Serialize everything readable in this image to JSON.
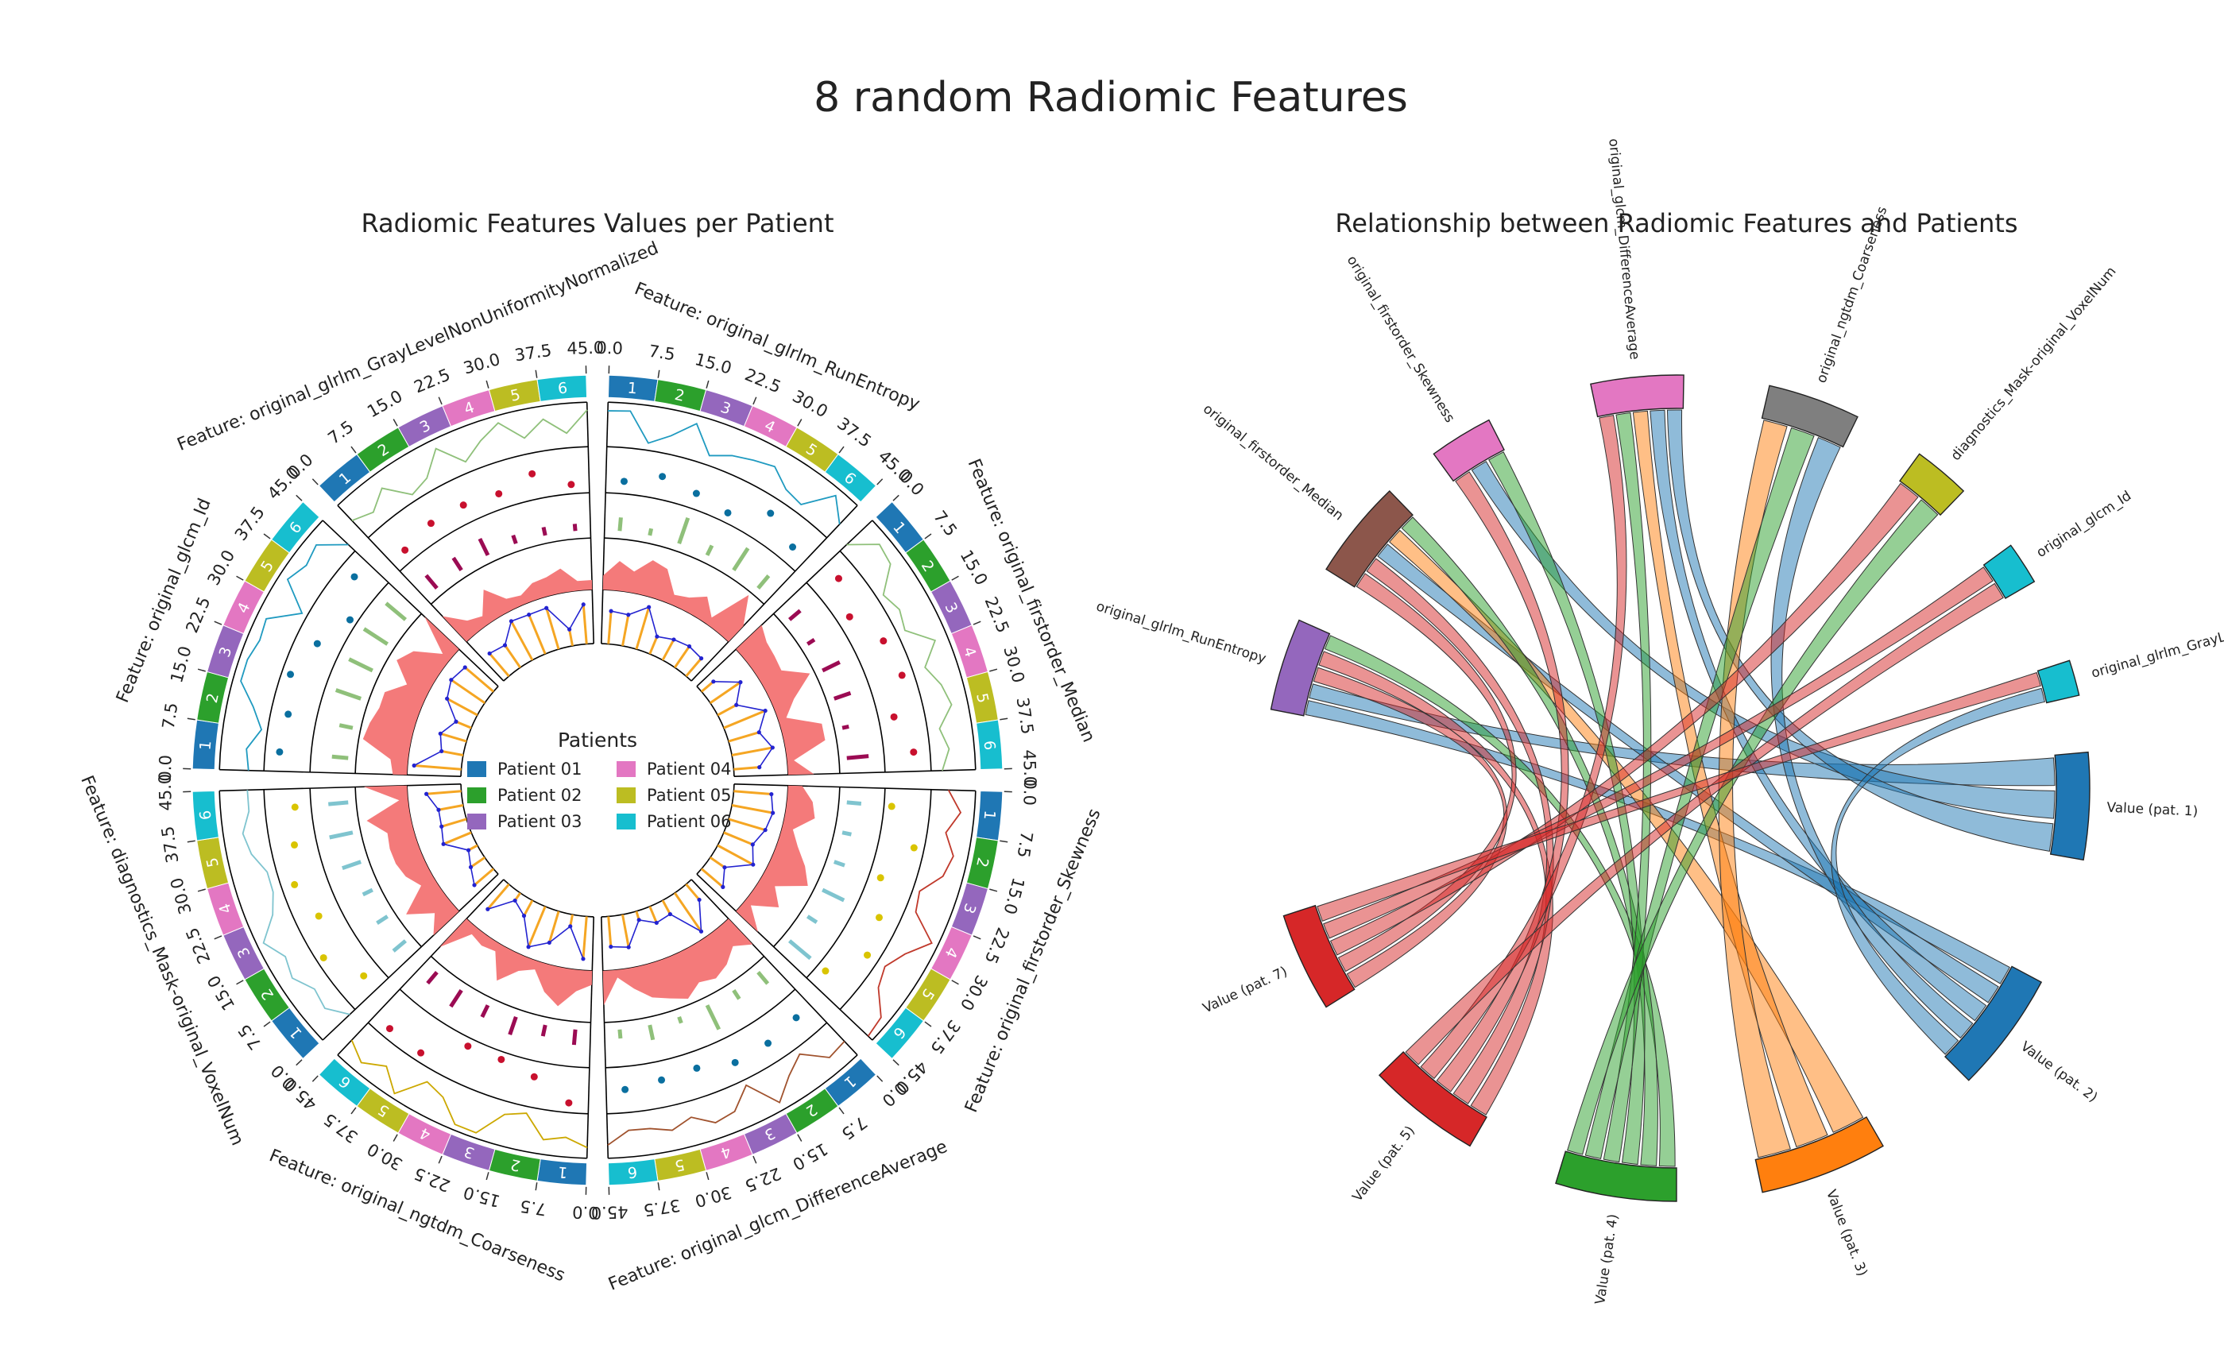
{
  "figure": {
    "title": "8 random Radiomic Features"
  },
  "colors": {
    "patients": [
      "#1f77b4",
      "#2ca02c",
      "#9467bd",
      "#e377c2",
      "#bcbd22",
      "#17becf"
    ],
    "area_fill": "#f47a7a",
    "scatter": "#0a6f9f",
    "scatter_red": "#c8102e",
    "scatter_yellow": "#d9c400",
    "bars_green": "#8fc07a",
    "bars_purple": "#9b0b53",
    "bars_cyan": "#7fc4cf",
    "line_blue": "#2323d0",
    "stem_orange": "#f5a623"
  },
  "chart_data": [
    {
      "type": "circos",
      "title": "Radiomic Features Values per Patient",
      "tick_labels": [
        "0.0",
        "7.5",
        "15.0",
        "22.5",
        "30.0",
        "37.5",
        "45.0"
      ],
      "axis_range": [
        0,
        45
      ],
      "patient_labels": [
        "1",
        "2",
        "3",
        "4",
        "5",
        "6"
      ],
      "legend": {
        "title": "Patients",
        "placement": "center",
        "entries": [
          "Patient 01",
          "Patient 02",
          "Patient 03",
          "Patient 04",
          "Patient 05",
          "Patient 06"
        ]
      },
      "sectors": [
        {
          "label": "Feature: original_glrlm_RunEntropy",
          "track_style": "scatter",
          "ring_style": "stems"
        },
        {
          "label": "Feature: original_firstorder_Median",
          "track_style": "scatter_red",
          "ring_style": "stems"
        },
        {
          "label": "Feature: original_firstorder_Skewness",
          "track_style": "scatter_yellow",
          "ring_style": "stems"
        },
        {
          "label": "Feature: original_glcm_DifferenceAverage",
          "track_style": "scatter",
          "ring_style": "stems"
        },
        {
          "label": "Feature: original_ngtdm_Coarseness",
          "track_style": "scatter_red",
          "ring_style": "stems"
        },
        {
          "label": "Feature: diagnostics_Mask-original_VoxelNum",
          "track_style": "scatter_yellow",
          "ring_style": "stems"
        },
        {
          "label": "Feature: original_glcm_Id",
          "track_style": "scatter",
          "ring_style": "stems"
        },
        {
          "label": "Feature: original_glrlm_GrayLevelNonUniformityNormalized",
          "track_style": "scatter_red",
          "ring_style": "stems"
        }
      ]
    },
    {
      "type": "chord",
      "title": "Relationship between Radiomic Features and Patients",
      "nodes": [
        {
          "label": "original_glrlm_RunEntropy",
          "color": "#9467bd"
        },
        {
          "label": "original_firstorder_Median",
          "color": "#8c564b"
        },
        {
          "label": "original_firstorder_Skewness",
          "color": "#e377c2"
        },
        {
          "label": "original_glcm_DifferenceAverage",
          "color": "#e377c2"
        },
        {
          "label": "original_ngtdm_Coarseness",
          "color": "#7f7f7f"
        },
        {
          "label": "diagnostics_Mask-original_VoxelNum",
          "color": "#bcbd22"
        },
        {
          "label": "original_glcm_Id",
          "color": "#17becf"
        },
        {
          "label": "original_glrlm_GrayLevelNonUniformityNormalized",
          "color": "#17becf"
        },
        {
          "label": "Value (pat. 1)",
          "color": "#1f77b4"
        },
        {
          "label": "Value (pat. 2)",
          "color": "#1f77b4"
        },
        {
          "label": "Value (pat. 3)",
          "color": "#ff7f0e"
        },
        {
          "label": "Value (pat. 4)",
          "color": "#2ca02c"
        },
        {
          "label": "Value (pat. 5)",
          "color": "#d62728"
        },
        {
          "label": "Value (pat. 7)",
          "color": "#d62728"
        }
      ]
    }
  ]
}
